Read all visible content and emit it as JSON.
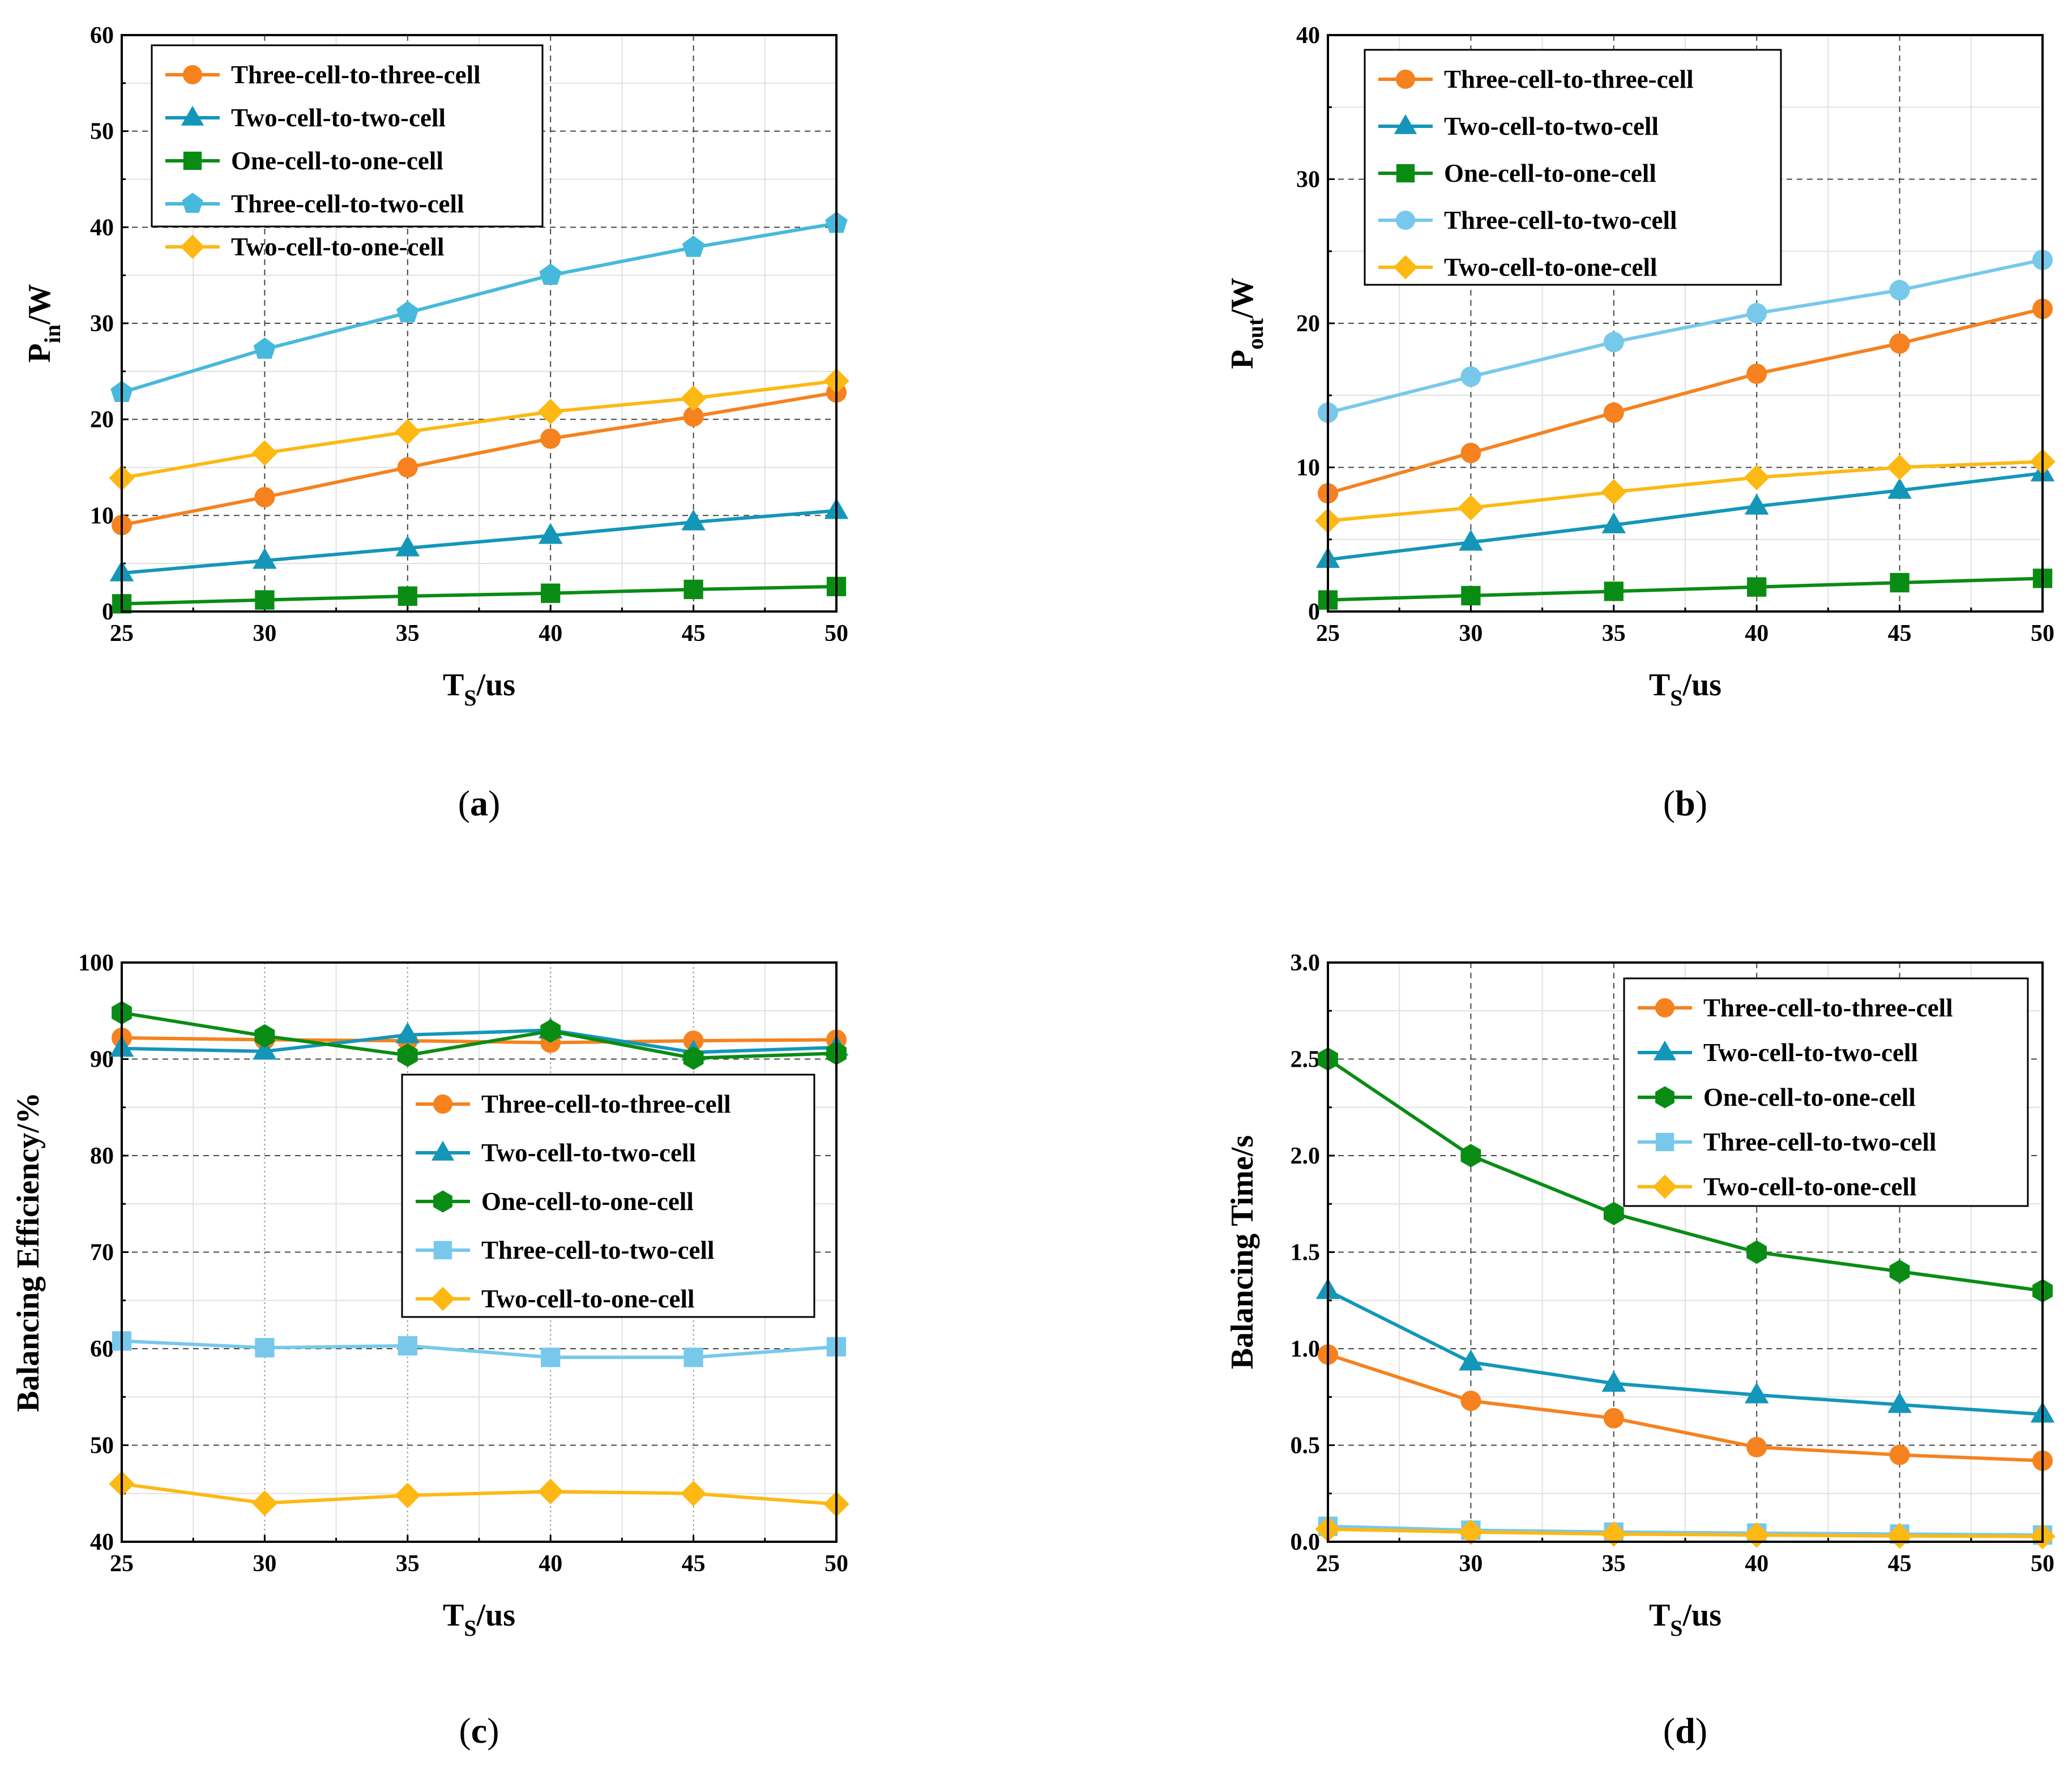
{
  "colors": {
    "orange": "#f5821f",
    "teal": "#1496b9",
    "green": "#0a8c14",
    "skyblue": "#46b9dc",
    "lightblue": "#78c8ec",
    "yellow": "#fdb813"
  },
  "chart_data": [
    {
      "id": "a",
      "type": "line",
      "panel_label": "a",
      "xlabel": {
        "main": "T",
        "sub": "S",
        "rest": "/us"
      },
      "ylabel": {
        "main": "P",
        "sub": "in",
        "rest": "/W"
      },
      "x": [
        25,
        30,
        35,
        40,
        45,
        50
      ],
      "xlim": [
        25,
        50
      ],
      "ylim": [
        0,
        60
      ],
      "xticks": [
        25,
        30,
        35,
        40,
        45,
        50
      ],
      "yticks": [
        0,
        10,
        20,
        30,
        40,
        50,
        60
      ],
      "grid_style": "dashed",
      "legend_position": "top-left",
      "series": [
        {
          "name": "Three-cell-to-three-cell",
          "color": "#f5821f",
          "marker": "circle",
          "values": [
            9.0,
            11.9,
            15.0,
            18.0,
            20.3,
            22.8
          ]
        },
        {
          "name": "Two-cell-to-two-cell",
          "color": "#1496b9",
          "marker": "triangle",
          "values": [
            4.0,
            5.3,
            6.6,
            7.9,
            9.3,
            10.5
          ]
        },
        {
          "name": "One-cell-to-one-cell",
          "color": "#0a8c14",
          "marker": "square",
          "values": [
            0.8,
            1.2,
            1.6,
            1.9,
            2.3,
            2.6
          ]
        },
        {
          "name": "Three-cell-to-two-cell",
          "color": "#46b9dc",
          "marker": "pentagon",
          "values": [
            22.8,
            27.3,
            31.1,
            35.0,
            37.9,
            40.4
          ]
        },
        {
          "name": "Two-cell-to-one-cell",
          "color": "#fdb813",
          "marker": "diamond",
          "values": [
            13.9,
            16.5,
            18.7,
            20.8,
            22.2,
            24.0
          ]
        }
      ]
    },
    {
      "id": "b",
      "type": "line",
      "panel_label": "b",
      "xlabel": {
        "main": "T",
        "sub": "S",
        "rest": "/us"
      },
      "ylabel": {
        "main": "P",
        "sub": "out",
        "rest": "/W"
      },
      "x": [
        25,
        30,
        35,
        40,
        45,
        50
      ],
      "xlim": [
        25,
        50
      ],
      "ylim": [
        0,
        40
      ],
      "xticks": [
        25,
        30,
        35,
        40,
        45,
        50
      ],
      "yticks": [
        0,
        10,
        20,
        30,
        40
      ],
      "grid_style": "dashed",
      "legend_position": "top-left",
      "series": [
        {
          "name": "Three-cell-to-three-cell",
          "color": "#f5821f",
          "marker": "circle",
          "values": [
            8.2,
            11.0,
            13.8,
            16.5,
            18.6,
            21.0
          ]
        },
        {
          "name": "Two-cell-to-two-cell",
          "color": "#1496b9",
          "marker": "triangle",
          "values": [
            3.6,
            4.8,
            6.0,
            7.3,
            8.4,
            9.6
          ]
        },
        {
          "name": "One-cell-to-one-cell",
          "color": "#0a8c14",
          "marker": "square",
          "values": [
            0.8,
            1.1,
            1.4,
            1.7,
            2.0,
            2.3
          ]
        },
        {
          "name": "Three-cell-to-two-cell",
          "color": "#78c8ec",
          "marker": "circle",
          "values": [
            13.8,
            16.3,
            18.7,
            20.7,
            22.3,
            24.4
          ]
        },
        {
          "name": "Two-cell-to-one-cell",
          "color": "#fdb813",
          "marker": "diamond",
          "values": [
            6.3,
            7.2,
            8.3,
            9.3,
            10.0,
            10.4
          ]
        }
      ]
    },
    {
      "id": "c",
      "type": "line",
      "panel_label": "c",
      "xlabel": {
        "main": "T",
        "sub": "S",
        "rest": "/us"
      },
      "ylabel": {
        "main": "Balancing Efficiency/%",
        "sub": "",
        "rest": ""
      },
      "x": [
        25,
        30,
        35,
        40,
        45,
        50
      ],
      "xlim": [
        25,
        50
      ],
      "ylim": [
        40,
        100
      ],
      "xticks": [
        25,
        30,
        35,
        40,
        45,
        50
      ],
      "yticks": [
        40,
        50,
        60,
        70,
        80,
        90,
        100
      ],
      "grid_style": "dashed-y-dotted-x",
      "legend_position": "center-right",
      "series": [
        {
          "name": "Three-cell-to-three-cell",
          "color": "#f5821f",
          "marker": "circle",
          "values": [
            92.2,
            92.0,
            91.9,
            91.7,
            91.9,
            92.0
          ]
        },
        {
          "name": "Two-cell-to-two-cell",
          "color": "#1496b9",
          "marker": "triangle",
          "values": [
            91.1,
            90.8,
            92.5,
            93.0,
            90.7,
            91.2
          ]
        },
        {
          "name": "One-cell-to-one-cell",
          "color": "#0a8c14",
          "marker": "hexagon",
          "values": [
            94.8,
            92.4,
            90.4,
            92.9,
            90.1,
            90.6
          ]
        },
        {
          "name": "Three-cell-to-two-cell",
          "color": "#78c8ec",
          "marker": "square",
          "values": [
            60.8,
            60.1,
            60.3,
            59.1,
            59.1,
            60.2
          ]
        },
        {
          "name": "Two-cell-to-one-cell",
          "color": "#fdb813",
          "marker": "diamond",
          "values": [
            46.0,
            44.0,
            44.8,
            45.2,
            45.0,
            43.9
          ]
        }
      ]
    },
    {
      "id": "d",
      "type": "line",
      "panel_label": "d",
      "xlabel": {
        "main": "T",
        "sub": "S",
        "rest": "/us"
      },
      "ylabel": {
        "main": "Balancing Time/s",
        "sub": "",
        "rest": ""
      },
      "x": [
        25,
        30,
        35,
        40,
        45,
        50
      ],
      "xlim": [
        25,
        50
      ],
      "ylim": [
        0,
        3
      ],
      "xticks": [
        25,
        30,
        35,
        40,
        45,
        50
      ],
      "yticks": [
        0,
        0.5,
        1,
        1.5,
        2,
        2.5,
        3
      ],
      "ytick_labels": [
        "0.0",
        "0.5",
        "1.0",
        "1.5",
        "2.0",
        "2.5",
        "3.0"
      ],
      "grid_style": "dashed",
      "legend_position": "top-right",
      "series": [
        {
          "name": "Three-cell-to-three-cell",
          "color": "#f5821f",
          "marker": "circle",
          "values": [
            0.97,
            0.73,
            0.64,
            0.49,
            0.45,
            0.42
          ]
        },
        {
          "name": "Two-cell-to-two-cell",
          "color": "#1496b9",
          "marker": "triangle",
          "values": [
            1.3,
            0.93,
            0.82,
            0.76,
            0.71,
            0.66
          ]
        },
        {
          "name": "One-cell-to-one-cell",
          "color": "#0a8c14",
          "marker": "hexagon",
          "values": [
            2.5,
            2.0,
            1.7,
            1.5,
            1.4,
            1.3
          ]
        },
        {
          "name": "Three-cell-to-two-cell",
          "color": "#78c8ec",
          "marker": "square",
          "values": [
            0.08,
            0.06,
            0.05,
            0.045,
            0.04,
            0.035
          ]
        },
        {
          "name": "Two-cell-to-one-cell",
          "color": "#fdb813",
          "marker": "diamond",
          "values": [
            0.065,
            0.05,
            0.04,
            0.035,
            0.03,
            0.028
          ]
        }
      ]
    }
  ]
}
